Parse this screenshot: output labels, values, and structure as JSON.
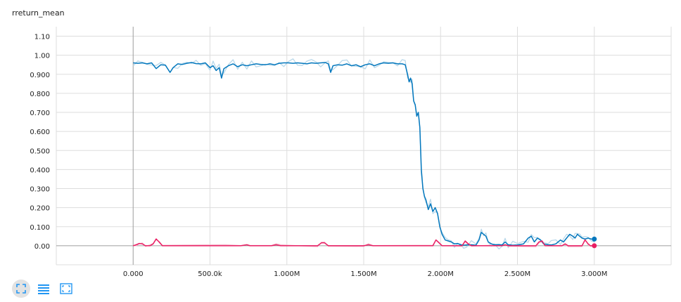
{
  "page": {
    "title": "rreturn_mean"
  },
  "toolbar": [
    {
      "name": "fit-domain-icon",
      "active": true
    },
    {
      "name": "toggle-log-scale-icon",
      "active": false
    },
    {
      "name": "zoom-select-icon",
      "active": false
    }
  ],
  "colors": {
    "series_blue": "#0277bd",
    "series_blue_raw": "#b9d8ea",
    "series_pink": "#e91e63",
    "series_pink_raw": "#f6bdd0",
    "grid": "#dddddd",
    "axis": "#9e9e9e",
    "toolbar_icon": "#2196f3"
  },
  "chart_data": {
    "type": "line",
    "title": "rreturn_mean",
    "xlabel": "",
    "ylabel": "",
    "xlim": [
      -500000,
      3500000
    ],
    "ylim": [
      -0.1,
      1.15
    ],
    "grid": true,
    "x_tick_labels": [
      {
        "v": 0,
        "label": "0.000"
      },
      {
        "v": 500000,
        "label": "500.0k"
      },
      {
        "v": 1000000,
        "label": "1.000M"
      },
      {
        "v": 1500000,
        "label": "1.500M"
      },
      {
        "v": 2000000,
        "label": "2.000M"
      },
      {
        "v": 2500000,
        "label": "2.500M"
      },
      {
        "v": 3000000,
        "label": "3.000M"
      }
    ],
    "y_tick_labels": [
      {
        "v": 0.0,
        "label": "0.00"
      },
      {
        "v": 0.1,
        "label": "0.100"
      },
      {
        "v": 0.2,
        "label": "0.200"
      },
      {
        "v": 0.3,
        "label": "0.300"
      },
      {
        "v": 0.4,
        "label": "0.400"
      },
      {
        "v": 0.5,
        "label": "0.500"
      },
      {
        "v": 0.6,
        "label": "0.600"
      },
      {
        "v": 0.7,
        "label": "0.700"
      },
      {
        "v": 0.8,
        "label": "0.800"
      },
      {
        "v": 0.9,
        "label": "0.900"
      },
      {
        "v": 1.0,
        "label": "1.00"
      },
      {
        "v": 1.1,
        "label": "1.10"
      }
    ],
    "series": [
      {
        "color": "#0277bd",
        "raw_color": "#b9d8ea",
        "points": [
          [
            0,
            0.96
          ],
          [
            30000,
            0.958
          ],
          [
            60000,
            0.96
          ],
          [
            90000,
            0.955
          ],
          [
            120000,
            0.96
          ],
          [
            150000,
            0.93
          ],
          [
            180000,
            0.95
          ],
          [
            210000,
            0.948
          ],
          [
            240000,
            0.91
          ],
          [
            260000,
            0.935
          ],
          [
            290000,
            0.955
          ],
          [
            320000,
            0.952
          ],
          [
            350000,
            0.958
          ],
          [
            380000,
            0.962
          ],
          [
            410000,
            0.956
          ],
          [
            440000,
            0.955
          ],
          [
            470000,
            0.96
          ],
          [
            500000,
            0.935
          ],
          [
            520000,
            0.945
          ],
          [
            540000,
            0.92
          ],
          [
            560000,
            0.935
          ],
          [
            575000,
            0.88
          ],
          [
            590000,
            0.93
          ],
          [
            620000,
            0.945
          ],
          [
            650000,
            0.955
          ],
          [
            680000,
            0.94
          ],
          [
            710000,
            0.95
          ],
          [
            740000,
            0.945
          ],
          [
            770000,
            0.95
          ],
          [
            800000,
            0.955
          ],
          [
            830000,
            0.952
          ],
          [
            860000,
            0.95
          ],
          [
            890000,
            0.955
          ],
          [
            920000,
            0.95
          ],
          [
            950000,
            0.958
          ],
          [
            980000,
            0.96
          ],
          [
            1010000,
            0.96
          ],
          [
            1040000,
            0.958
          ],
          [
            1070000,
            0.96
          ],
          [
            1100000,
            0.958
          ],
          [
            1130000,
            0.955
          ],
          [
            1160000,
            0.96
          ],
          [
            1190000,
            0.958
          ],
          [
            1220000,
            0.96
          ],
          [
            1250000,
            0.962
          ],
          [
            1270000,
            0.955
          ],
          [
            1285000,
            0.91
          ],
          [
            1300000,
            0.945
          ],
          [
            1330000,
            0.95
          ],
          [
            1360000,
            0.948
          ],
          [
            1390000,
            0.955
          ],
          [
            1420000,
            0.945
          ],
          [
            1450000,
            0.95
          ],
          [
            1480000,
            0.94
          ],
          [
            1510000,
            0.95
          ],
          [
            1540000,
            0.955
          ],
          [
            1570000,
            0.945
          ],
          [
            1600000,
            0.955
          ],
          [
            1630000,
            0.96
          ],
          [
            1660000,
            0.958
          ],
          [
            1690000,
            0.96
          ],
          [
            1720000,
            0.955
          ],
          [
            1750000,
            0.955
          ],
          [
            1770000,
            0.95
          ],
          [
            1785000,
            0.9
          ],
          [
            1795000,
            0.86
          ],
          [
            1805000,
            0.88
          ],
          [
            1815000,
            0.85
          ],
          [
            1825000,
            0.76
          ],
          [
            1835000,
            0.74
          ],
          [
            1845000,
            0.68
          ],
          [
            1855000,
            0.7
          ],
          [
            1865000,
            0.62
          ],
          [
            1875000,
            0.4
          ],
          [
            1885000,
            0.3
          ],
          [
            1895000,
            0.26
          ],
          [
            1905000,
            0.24
          ],
          [
            1920000,
            0.19
          ],
          [
            1935000,
            0.22
          ],
          [
            1950000,
            0.18
          ],
          [
            1965000,
            0.2
          ],
          [
            1980000,
            0.17
          ],
          [
            1995000,
            0.1
          ],
          [
            2010000,
            0.06
          ],
          [
            2030000,
            0.03
          ],
          [
            2050000,
            0.025
          ],
          [
            2070000,
            0.02
          ],
          [
            2090000,
            0.01
          ],
          [
            2110000,
            0.012
          ],
          [
            2130000,
            0.005
          ],
          [
            2150000,
            0.003
          ],
          [
            2170000,
            0.004
          ],
          [
            2200000,
            0.005
          ],
          [
            2230000,
            0.003
          ],
          [
            2250000,
            0.03
          ],
          [
            2265000,
            0.07
          ],
          [
            2280000,
            0.06
          ],
          [
            2295000,
            0.05
          ],
          [
            2310000,
            0.02
          ],
          [
            2330000,
            0.01
          ],
          [
            2350000,
            0.005
          ],
          [
            2380000,
            0.006
          ],
          [
            2400000,
            0.004
          ],
          [
            2420000,
            0.02
          ],
          [
            2440000,
            0.005
          ],
          [
            2470000,
            0.003
          ],
          [
            2500000,
            0.004
          ],
          [
            2540000,
            0.01
          ],
          [
            2570000,
            0.04
          ],
          [
            2590000,
            0.05
          ],
          [
            2610000,
            0.02
          ],
          [
            2630000,
            0.04
          ],
          [
            2650000,
            0.03
          ],
          [
            2670000,
            0.01
          ],
          [
            2700000,
            0.005
          ],
          [
            2720000,
            0.004
          ],
          [
            2750000,
            0.01
          ],
          [
            2780000,
            0.03
          ],
          [
            2800000,
            0.02
          ],
          [
            2820000,
            0.04
          ],
          [
            2840000,
            0.06
          ],
          [
            2860000,
            0.05
          ],
          [
            2875000,
            0.04
          ],
          [
            2890000,
            0.06
          ],
          [
            2905000,
            0.05
          ],
          [
            2920000,
            0.04
          ],
          [
            2940000,
            0.035
          ],
          [
            2960000,
            0.04
          ],
          [
            2980000,
            0.035
          ],
          [
            3000000,
            0.035
          ]
        ]
      },
      {
        "color": "#e91e63",
        "raw_color": "#f6bdd0",
        "points": [
          [
            0,
            0.0
          ],
          [
            20000,
            0.005
          ],
          [
            40000,
            0.012
          ],
          [
            60000,
            0.01
          ],
          [
            80000,
            0.0
          ],
          [
            110000,
            0.0
          ],
          [
            130000,
            0.01
          ],
          [
            150000,
            0.035
          ],
          [
            170000,
            0.02
          ],
          [
            190000,
            0.0
          ],
          [
            600000,
            0.0
          ],
          [
            700000,
            0.0
          ],
          [
            740000,
            0.005
          ],
          [
            760000,
            0.0
          ],
          [
            900000,
            0.0
          ],
          [
            930000,
            0.005
          ],
          [
            960000,
            0.0
          ],
          [
            1200000,
            0.0
          ],
          [
            1225000,
            0.015
          ],
          [
            1245000,
            0.015
          ],
          [
            1270000,
            0.0
          ],
          [
            1500000,
            0.0
          ],
          [
            1530000,
            0.005
          ],
          [
            1560000,
            0.0
          ],
          [
            1950000,
            0.0
          ],
          [
            1970000,
            0.03
          ],
          [
            1990000,
            0.015
          ],
          [
            2010000,
            0.0
          ],
          [
            2140000,
            0.0
          ],
          [
            2160000,
            0.025
          ],
          [
            2180000,
            0.01
          ],
          [
            2200000,
            0.0
          ],
          [
            2400000,
            0.0
          ],
          [
            2420000,
            0.005
          ],
          [
            2440000,
            0.0
          ],
          [
            2620000,
            0.0
          ],
          [
            2640000,
            0.02
          ],
          [
            2660000,
            0.025
          ],
          [
            2680000,
            0.0
          ],
          [
            2790000,
            0.0
          ],
          [
            2810000,
            0.01
          ],
          [
            2830000,
            0.0
          ],
          [
            2920000,
            0.0
          ],
          [
            2940000,
            0.03
          ],
          [
            2960000,
            0.01
          ],
          [
            2975000,
            0.0
          ],
          [
            3000000,
            0.0
          ]
        ]
      }
    ]
  }
}
